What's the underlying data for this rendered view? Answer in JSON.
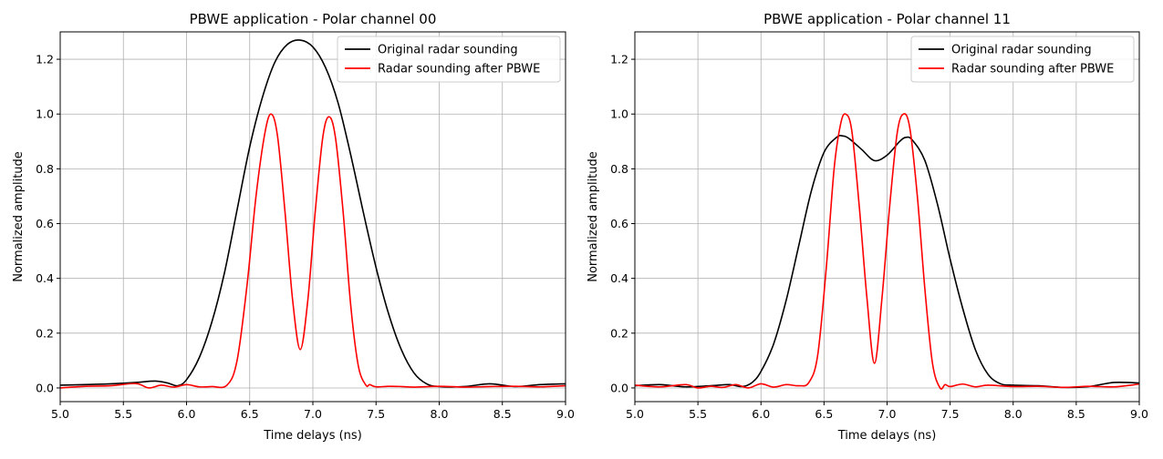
{
  "chart_data": [
    {
      "type": "line",
      "title": "PBWE application - Polar channel 00",
      "xlabel": "Time delays (ns)",
      "ylabel": "Normalized amplitude",
      "xlim": [
        5.0,
        9.0
      ],
      "ylim": [
        -0.05,
        1.3
      ],
      "xticks": [
        "5.0",
        "5.5",
        "6.0",
        "6.5",
        "7.0",
        "7.5",
        "8.0",
        "8.5",
        "9.0"
      ],
      "yticks": [
        "0.0",
        "0.2",
        "0.4",
        "0.6",
        "0.8",
        "1.0",
        "1.2"
      ],
      "grid": true,
      "legend_position": "top-right",
      "series": [
        {
          "name": "Original radar sounding",
          "color": "#000000",
          "x": [
            5.0,
            5.2,
            5.4,
            5.6,
            5.75,
            5.85,
            5.93,
            6.0,
            6.1,
            6.2,
            6.3,
            6.4,
            6.5,
            6.6,
            6.7,
            6.8,
            6.9,
            7.0,
            7.1,
            7.2,
            7.3,
            7.4,
            7.5,
            7.6,
            7.7,
            7.8,
            7.9,
            8.0,
            8.2,
            8.4,
            8.6,
            8.8,
            9.0
          ],
          "y": [
            0.01,
            0.012,
            0.015,
            0.02,
            0.025,
            0.018,
            0.008,
            0.03,
            0.11,
            0.24,
            0.42,
            0.65,
            0.88,
            1.06,
            1.19,
            1.255,
            1.27,
            1.245,
            1.17,
            1.04,
            0.85,
            0.64,
            0.44,
            0.27,
            0.14,
            0.055,
            0.015,
            0.005,
            0.005,
            0.015,
            0.005,
            0.012,
            0.015
          ]
        },
        {
          "name": "Radar sounding after PBWE",
          "color": "#ff0000",
          "x": [
            5.0,
            5.2,
            5.4,
            5.6,
            5.7,
            5.8,
            5.9,
            6.0,
            6.1,
            6.2,
            6.32,
            6.4,
            6.48,
            6.55,
            6.62,
            6.67,
            6.72,
            6.78,
            6.84,
            6.9,
            6.96,
            7.02,
            7.08,
            7.13,
            7.18,
            7.24,
            7.3,
            7.36,
            7.42,
            7.45,
            7.5,
            7.6,
            7.7,
            7.8,
            8.0,
            8.2,
            8.4,
            8.6,
            8.8,
            9.0
          ],
          "y": [
            0.0,
            0.006,
            0.008,
            0.016,
            0.0,
            0.01,
            0.003,
            0.012,
            0.004,
            0.005,
            0.01,
            0.1,
            0.38,
            0.7,
            0.93,
            1.0,
            0.92,
            0.64,
            0.32,
            0.14,
            0.32,
            0.65,
            0.92,
            0.99,
            0.91,
            0.64,
            0.3,
            0.08,
            0.01,
            0.012,
            0.004,
            0.006,
            0.005,
            0.003,
            0.006,
            0.003,
            0.005,
            0.006,
            0.004,
            0.008
          ]
        }
      ]
    },
    {
      "type": "line",
      "title": "PBWE application - Polar channel 11",
      "xlabel": "Time delays (ns)",
      "ylabel": "Normalized amplitude",
      "xlim": [
        5.0,
        9.0
      ],
      "ylim": [
        -0.05,
        1.3
      ],
      "xticks": [
        "5.0",
        "5.5",
        "6.0",
        "6.5",
        "7.0",
        "7.5",
        "8.0",
        "8.5",
        "9.0"
      ],
      "yticks": [
        "0.0",
        "0.2",
        "0.4",
        "0.6",
        "0.8",
        "1.0",
        "1.2"
      ],
      "grid": true,
      "legend_position": "top-right",
      "series": [
        {
          "name": "Original radar sounding",
          "color": "#000000",
          "x": [
            5.0,
            5.2,
            5.4,
            5.6,
            5.75,
            5.85,
            5.93,
            6.0,
            6.1,
            6.2,
            6.3,
            6.4,
            6.5,
            6.6,
            6.65,
            6.7,
            6.8,
            6.9,
            7.0,
            7.1,
            7.15,
            7.2,
            7.3,
            7.4,
            7.5,
            7.6,
            7.7,
            7.8,
            7.9,
            8.0,
            8.2,
            8.4,
            8.6,
            8.8,
            9.0
          ],
          "y": [
            0.008,
            0.012,
            0.004,
            0.008,
            0.012,
            0.005,
            0.02,
            0.06,
            0.16,
            0.32,
            0.52,
            0.72,
            0.86,
            0.915,
            0.92,
            0.91,
            0.87,
            0.83,
            0.85,
            0.9,
            0.915,
            0.905,
            0.83,
            0.67,
            0.47,
            0.29,
            0.14,
            0.05,
            0.015,
            0.01,
            0.008,
            0.002,
            0.005,
            0.02,
            0.018
          ]
        },
        {
          "name": "Radar sounding after PBWE",
          "color": "#ff0000",
          "x": [
            5.0,
            5.2,
            5.4,
            5.5,
            5.6,
            5.7,
            5.8,
            5.9,
            6.0,
            6.1,
            6.2,
            6.3,
            6.38,
            6.45,
            6.52,
            6.58,
            6.63,
            6.67,
            6.72,
            6.78,
            6.84,
            6.9,
            6.96,
            7.02,
            7.08,
            7.13,
            7.18,
            7.24,
            7.3,
            7.36,
            7.42,
            7.46,
            7.5,
            7.6,
            7.7,
            7.8,
            8.0,
            8.2,
            8.4,
            8.6,
            8.8,
            9.0
          ],
          "y": [
            0.01,
            0.004,
            0.012,
            0.0,
            0.006,
            0.002,
            0.012,
            0.0,
            0.015,
            0.003,
            0.012,
            0.008,
            0.02,
            0.12,
            0.45,
            0.8,
            0.96,
            1.0,
            0.94,
            0.66,
            0.33,
            0.09,
            0.33,
            0.66,
            0.93,
            1.0,
            0.95,
            0.7,
            0.36,
            0.09,
            0.0,
            0.012,
            0.005,
            0.014,
            0.004,
            0.01,
            0.005,
            0.006,
            0.002,
            0.006,
            0.004,
            0.014
          ]
        }
      ]
    }
  ]
}
